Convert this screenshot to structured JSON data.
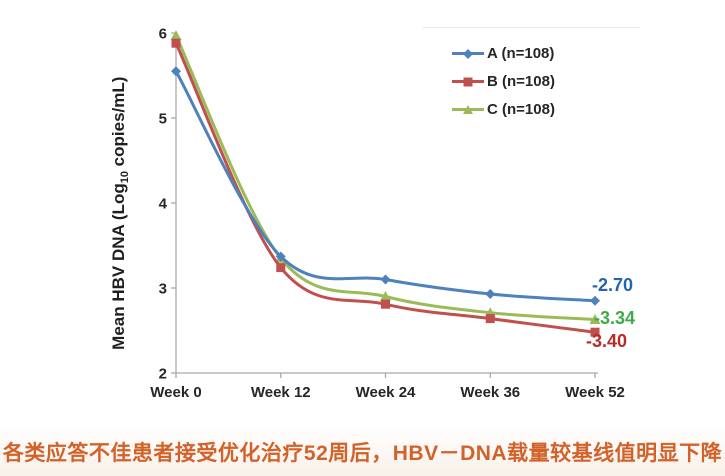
{
  "chart_data": {
    "type": "line",
    "title": "",
    "ylabel": {
      "pre": "Mean HBV DNA (Log",
      "sub": "10",
      "post": " copies/mL)"
    },
    "xlabel": "",
    "categories": [
      "Week 0",
      "Week 12",
      "Week 24",
      "Week 36",
      "Week 52"
    ],
    "y_ticks": [
      2,
      3,
      4,
      5,
      6
    ],
    "ylim": [
      2,
      6
    ],
    "grid": false,
    "legend_position": "top-right",
    "axis_color": "#a9a9a9",
    "tick_label_color": "#262626",
    "series": [
      {
        "name": "A (n=108)",
        "marker": "diamond",
        "color": "#4f81bd",
        "values": [
          5.55,
          3.37,
          3.1,
          2.93,
          2.85
        ],
        "end_label": "-2.70",
        "end_label_color": "#2565ae"
      },
      {
        "name": "B (n=108)",
        "marker": "square",
        "color": "#c0504d",
        "values": [
          5.88,
          3.24,
          2.81,
          2.64,
          2.48
        ],
        "end_label": "-3.40",
        "end_label_color": "#b92b26"
      },
      {
        "name": "C (n=108)",
        "marker": "triangle",
        "color": "#9bbb59",
        "values": [
          5.97,
          3.35,
          2.9,
          2.71,
          2.63
        ],
        "end_label": "-3.34",
        "end_label_color": "#3faa47"
      }
    ]
  },
  "caption": {
    "text": "各类应答不佳患者接受优化治疗52周后，HBV－DNA载量较基线值明显下降",
    "color": "#d2622a"
  }
}
